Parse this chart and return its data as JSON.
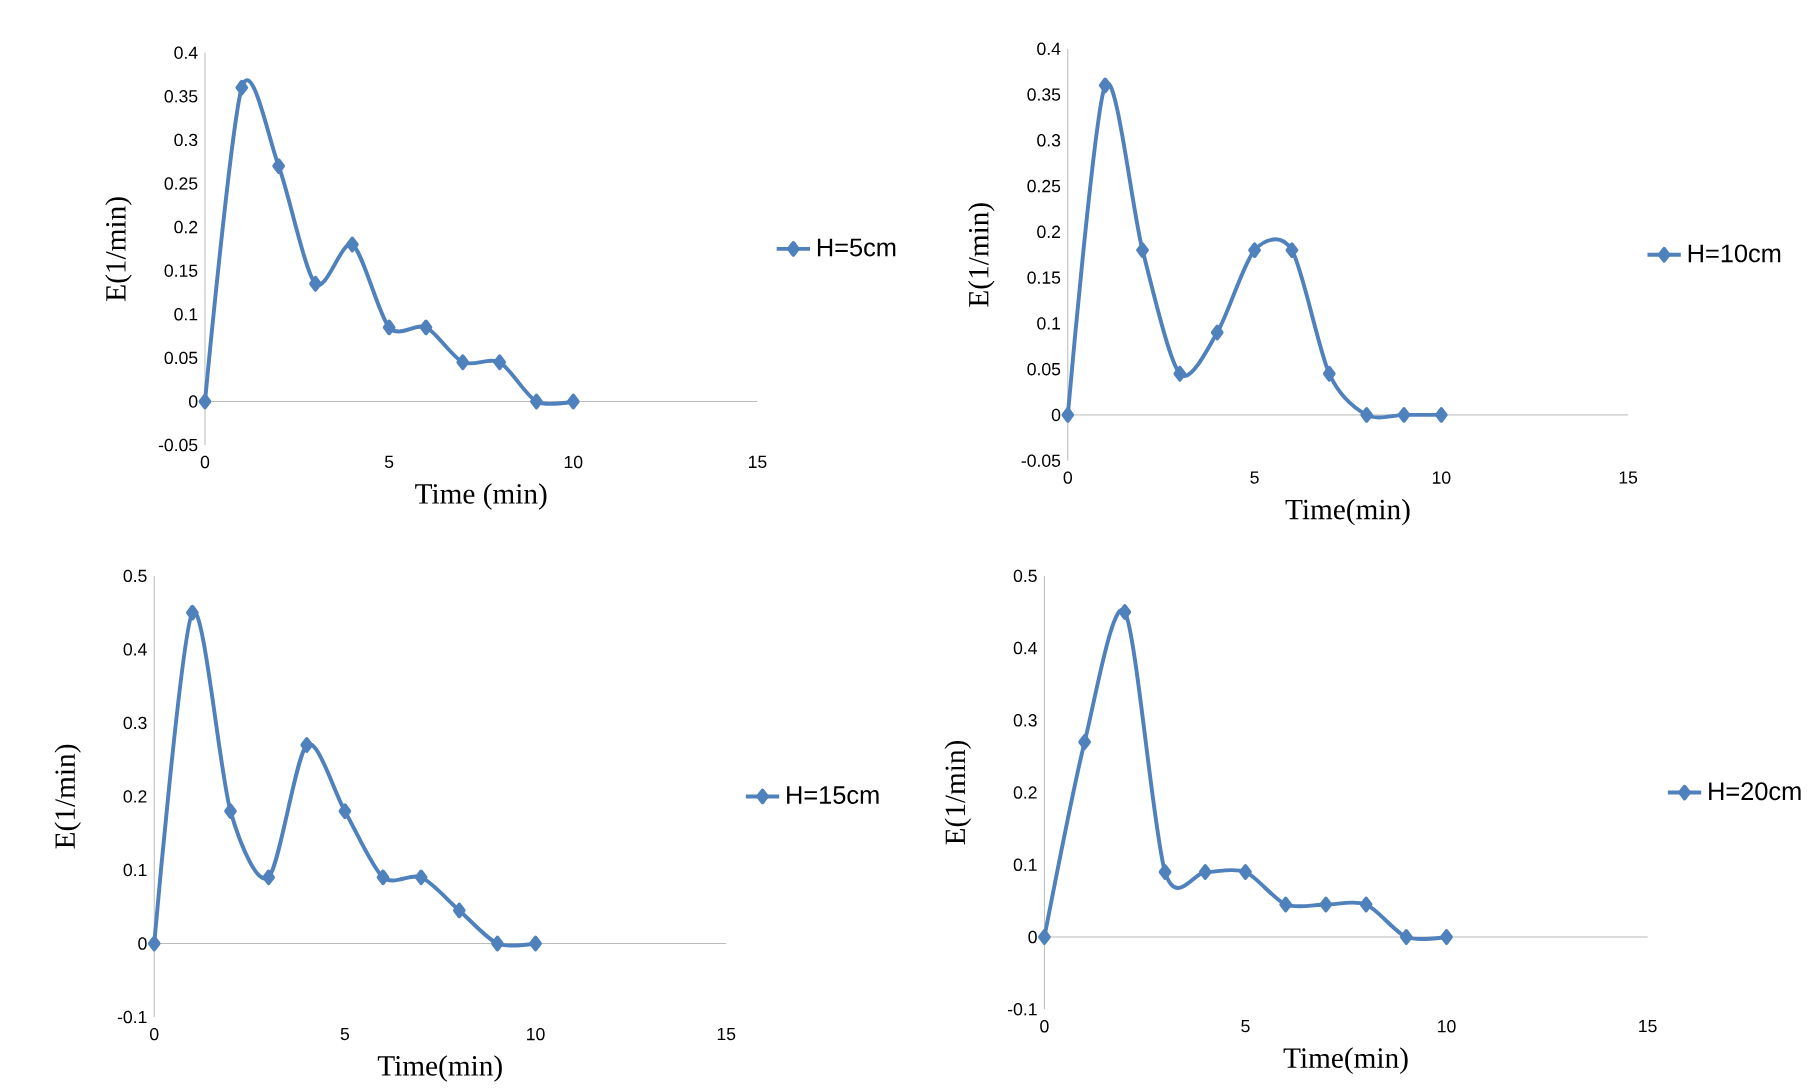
{
  "chart_data": [
    {
      "type": "line",
      "xlabel": "Time (min)",
      "ylabel": "E(1/min)",
      "x": [
        0,
        1,
        2,
        3,
        4,
        5,
        6,
        7,
        8,
        9,
        10
      ],
      "xlim": [
        0,
        15
      ],
      "xticks": [
        0,
        5,
        10,
        15
      ],
      "ylim": [
        -0.05,
        0.4
      ],
      "yticks": [
        -0.05,
        0,
        0.05,
        0.1,
        0.15,
        0.2,
        0.25,
        0.3,
        0.35,
        0.4
      ],
      "legend": "right",
      "marker": "diamond",
      "line_style": "solid",
      "series": [
        {
          "name": "H=5cm",
          "color": "#4f81bd",
          "values": [
            0,
            0.36,
            0.27,
            0.135,
            0.18,
            0.085,
            0.085,
            0.045,
            0.045,
            0,
            0
          ]
        }
      ]
    },
    {
      "type": "line",
      "xlabel": "Time(min)",
      "ylabel": "E(1/min)",
      "x": [
        0,
        1,
        2,
        3,
        4,
        5,
        6,
        7,
        8,
        9,
        10
      ],
      "xlim": [
        0,
        15
      ],
      "xticks": [
        0,
        5,
        10,
        15
      ],
      "ylim": [
        -0.05,
        0.4
      ],
      "yticks": [
        -0.05,
        0,
        0.05,
        0.1,
        0.15,
        0.2,
        0.25,
        0.3,
        0.35,
        0.4
      ],
      "legend": "right",
      "marker": "diamond",
      "line_style": "solid",
      "series": [
        {
          "name": "H=10cm",
          "color": "#4f81bd",
          "values": [
            0,
            0.36,
            0.18,
            0.045,
            0.09,
            0.18,
            0.18,
            0.045,
            0,
            0,
            0
          ]
        }
      ]
    },
    {
      "type": "line",
      "xlabel": "Time(min)",
      "ylabel": "E(1/min)",
      "x": [
        0,
        1,
        2,
        3,
        4,
        5,
        6,
        7,
        8,
        9,
        10
      ],
      "xlim": [
        0,
        15
      ],
      "xticks": [
        0,
        5,
        10,
        15
      ],
      "ylim": [
        -0.1,
        0.5
      ],
      "yticks": [
        -0.1,
        0,
        0.1,
        0.2,
        0.3,
        0.4,
        0.5
      ],
      "legend": "right",
      "marker": "diamond",
      "line_style": "solid",
      "series": [
        {
          "name": "H=15cm",
          "color": "#4f81bd",
          "values": [
            0,
            0.45,
            0.18,
            0.09,
            0.27,
            0.18,
            0.09,
            0.09,
            0.045,
            0,
            0
          ]
        }
      ]
    },
    {
      "type": "line",
      "xlabel": "Time(min)",
      "ylabel": "E(1/min)",
      "x": [
        0,
        1,
        2,
        3,
        4,
        5,
        6,
        7,
        8,
        9,
        10
      ],
      "xlim": [
        0,
        15
      ],
      "xticks": [
        0,
        5,
        10,
        15
      ],
      "ylim": [
        -0.1,
        0.5
      ],
      "yticks": [
        -0.1,
        0,
        0.1,
        0.2,
        0.3,
        0.4,
        0.5
      ],
      "legend": "right",
      "marker": "diamond",
      "line_style": "solid",
      "series": [
        {
          "name": "H=20cm",
          "color": "#4f81bd",
          "values": [
            0,
            0.27,
            0.45,
            0.09,
            0.09,
            0.09,
            0.045,
            0.045,
            0.045,
            0,
            0
          ]
        }
      ]
    }
  ]
}
